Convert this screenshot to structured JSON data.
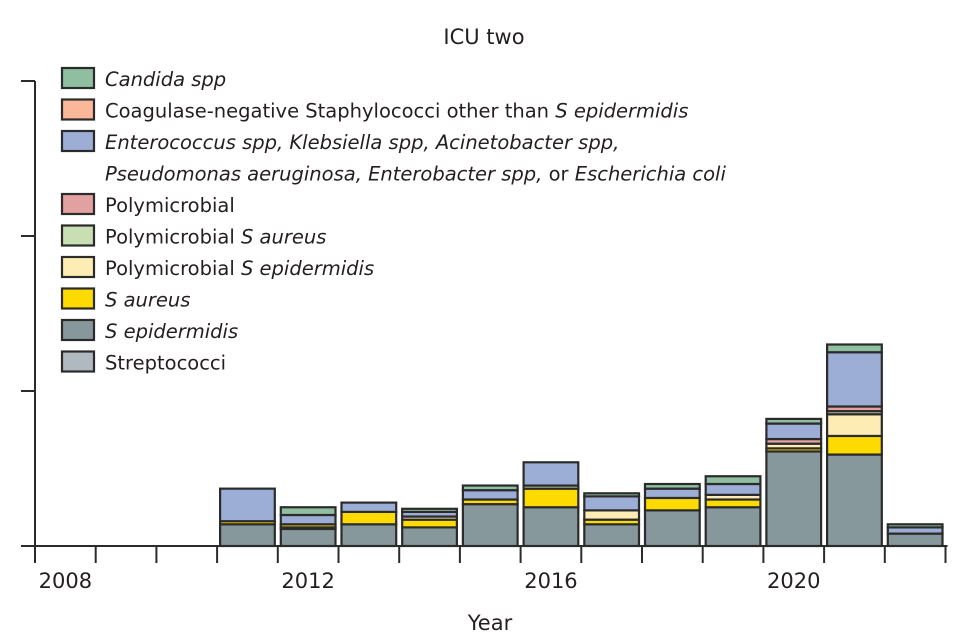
{
  "chart_data": {
    "type": "bar",
    "stacked": true,
    "title": "ICU two",
    "xlabel": "Year",
    "ylabel": "",
    "ylim": [
      0,
      30
    ],
    "yticks": [
      0,
      10,
      20,
      30
    ],
    "ytick_labels_shown": false,
    "x_range": [
      2008,
      2022
    ],
    "xtick_labels": [
      {
        "year": 2008,
        "label": "2008"
      },
      {
        "year": 2012,
        "label": "2012"
      },
      {
        "year": 2016,
        "label": "2016"
      },
      {
        "year": 2020,
        "label": "2020"
      }
    ],
    "grid": false,
    "legend_position": "top-left",
    "categories": [
      2011,
      2012,
      2013,
      2014,
      2015,
      2016,
      2017,
      2018,
      2019,
      2020,
      2021,
      2022
    ],
    "series": [
      {
        "key": "s_epidermidis",
        "name": "S epidermidis",
        "color": "#87989c",
        "values": [
          1.4,
          1.1,
          1.4,
          1.2,
          2.7,
          2.5,
          1.4,
          2.3,
          2.5,
          6.1,
          5.9,
          0.8
        ]
      },
      {
        "key": "streptococci",
        "name": "Streptococci",
        "color": "#b1b9c0",
        "values": [
          0,
          0.1,
          0,
          0,
          0,
          0,
          0,
          0,
          0,
          0,
          0,
          0
        ]
      },
      {
        "key": "s_aureus",
        "name": "S aureus",
        "color": "#fedb00",
        "values": [
          0.2,
          0.2,
          0.8,
          0.5,
          0.3,
          1.2,
          0.3,
          0.8,
          0.5,
          0.2,
          1.2,
          0
        ]
      },
      {
        "key": "poly_s_epidermidis",
        "name": "Polymicrobial S epidermidis",
        "color": "#fdedb5",
        "values": [
          0,
          0,
          0,
          0.2,
          0,
          0,
          0.6,
          0,
          0.3,
          0.3,
          1.4,
          0
        ]
      },
      {
        "key": "poly_s_aureus",
        "name": "Polymicrobial S aureus",
        "color": "#c8dfb4",
        "values": [
          0,
          0,
          0,
          0,
          0,
          0.2,
          0,
          0,
          0,
          0,
          0.2,
          0
        ]
      },
      {
        "key": "polymicrobial",
        "name": "Polymicrobial",
        "color": "#e3a0a0",
        "values": [
          0,
          0,
          0,
          0,
          0,
          0,
          0,
          0,
          0,
          0.3,
          0.3,
          0
        ]
      },
      {
        "key": "enterococcus_etc",
        "name": "Enterococcus spp, Klebsiella spp, Acinetobacter spp, Pseudomonas aeruginosa, Enterobacter spp, or Escherichia coli",
        "color": "#9daed6",
        "values": [
          2.1,
          0.6,
          0.6,
          0.3,
          0.6,
          1.5,
          0.9,
          0.6,
          0.7,
          1.0,
          3.5,
          0.4
        ]
      },
      {
        "key": "cons_other",
        "name": "Coagulase-negative Staphylococci other than S epidermidis",
        "color": "#fbb79a",
        "values": [
          0,
          0,
          0,
          0,
          0,
          0,
          0,
          0,
          0,
          0,
          0,
          0
        ]
      },
      {
        "key": "candida",
        "name": "Candida spp",
        "color": "#8fbfa0",
        "values": [
          0,
          0.5,
          0,
          0.2,
          0.3,
          0,
          0.2,
          0.3,
          0.5,
          0.3,
          0.5,
          0.2
        ]
      }
    ],
    "legend": [
      {
        "key": "candida",
        "color": "#8fbfa0",
        "parts": [
          {
            "t": "Candida spp",
            "i": true
          }
        ]
      },
      {
        "key": "cons_other",
        "color": "#fbb79a",
        "parts": [
          {
            "t": "Coagulase-negative Staphylococci other than ",
            "i": false
          },
          {
            "t": "S epidermidis",
            "i": true
          }
        ]
      },
      {
        "key": "enterococcus_etc",
        "color": "#9daed6",
        "parts": [
          {
            "t": "Enterococcus spp, Klebsiella spp, Acinetobacter spp,",
            "i": true
          }
        ],
        "continuation": [
          {
            "t": "Pseudomonas aeruginosa, Enterobacter spp,",
            "i": true
          },
          {
            "t": " or ",
            "i": false
          },
          {
            "t": "Escherichia coli",
            "i": true
          }
        ]
      },
      {
        "key": "polymicrobial",
        "color": "#e3a0a0",
        "parts": [
          {
            "t": "Polymicrobial",
            "i": false
          }
        ]
      },
      {
        "key": "poly_s_aureus",
        "color": "#c8dfb4",
        "parts": [
          {
            "t": "Polymicrobial ",
            "i": false
          },
          {
            "t": "S aureus",
            "i": true
          }
        ]
      },
      {
        "key": "poly_s_epidermidis",
        "color": "#fdedb5",
        "parts": [
          {
            "t": "Polymicrobial ",
            "i": false
          },
          {
            "t": "S epidermidis",
            "i": true
          }
        ]
      },
      {
        "key": "s_aureus",
        "color": "#fedb00",
        "parts": [
          {
            "t": "S aureus",
            "i": true
          }
        ]
      },
      {
        "key": "s_epidermidis",
        "color": "#87989c",
        "parts": [
          {
            "t": "S epidermidis",
            "i": true
          }
        ]
      },
      {
        "key": "streptococci",
        "color": "#b1b9c0",
        "parts": [
          {
            "t": "Streptococci",
            "i": false
          }
        ]
      }
    ]
  }
}
